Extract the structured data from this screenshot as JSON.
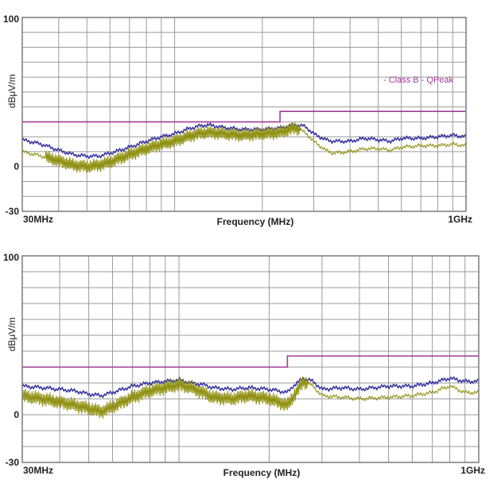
{
  "colors": {
    "grid": "#9a9a9a",
    "frame": "#7a7a7a",
    "limit": "#a03c98",
    "peak": "#2d2a9a",
    "avg": "#8f8f0f",
    "text": "#222222"
  },
  "chart_data": [
    {
      "type": "line",
      "title": "",
      "xlabel": "Frequency (MHz)",
      "ylabel": "dBμV/m",
      "x_scale": "log",
      "xlim_mhz": [
        30,
        1000
      ],
      "ylim": [
        -30,
        100
      ],
      "x_tick_labels": [
        "30MHz",
        "1GHz"
      ],
      "y_tick_labels": [
        "100",
        "0",
        "-30"
      ],
      "grid": true,
      "legend": "Class B - QPeak",
      "limit_line": {
        "name": "Class B - QPeak",
        "x_mhz": [
          30,
          230,
          230,
          1000
        ],
        "y": [
          30,
          30,
          37,
          37
        ]
      },
      "series": [
        {
          "name": "",
          "style": "blue",
          "x_mhz": [
            30,
            35,
            40,
            45,
            50,
            55,
            60,
            70,
            80,
            90,
            100,
            110,
            120,
            130,
            150,
            170,
            200,
            230,
            260,
            280,
            300,
            330,
            350,
            400,
            450,
            500,
            550,
            600,
            700,
            800,
            900,
            1000
          ],
          "y": [
            18,
            15,
            11,
            8,
            7,
            7,
            9,
            13,
            17,
            20,
            22,
            25,
            27,
            28,
            26,
            25,
            25,
            26,
            28,
            27,
            22,
            18,
            17,
            17,
            19,
            18,
            17,
            19,
            19,
            20,
            21,
            20
          ]
        },
        {
          "name": "",
          "style": "olive",
          "x_mhz": [
            30,
            35,
            40,
            45,
            50,
            55,
            60,
            70,
            80,
            90,
            100,
            110,
            120,
            130,
            150,
            170,
            200,
            230,
            260,
            280,
            300,
            330,
            350,
            400,
            450,
            500,
            550,
            600,
            700,
            800,
            900,
            1000
          ],
          "y": [
            10,
            7,
            4,
            1,
            0,
            1,
            3,
            8,
            12,
            15,
            17,
            20,
            22,
            23,
            22,
            21,
            22,
            23,
            26,
            23,
            17,
            11,
            9,
            10,
            12,
            12,
            11,
            13,
            14,
            14,
            15,
            14
          ],
          "ripple_range_mhz": [
            36,
            270
          ]
        }
      ]
    },
    {
      "type": "line",
      "title": "",
      "xlabel": "Frequency (MHz)",
      "ylabel": "dBμV/m",
      "x_scale": "log",
      "xlim_mhz": [
        30,
        1000
      ],
      "ylim": [
        -30,
        100
      ],
      "x_tick_labels": [
        "30MHz",
        "1GHz"
      ],
      "y_tick_labels": [
        "100",
        "0",
        "-30"
      ],
      "grid": true,
      "legend": "",
      "limit_line": {
        "name": "",
        "x_mhz": [
          30,
          230,
          230,
          1000
        ],
        "y": [
          30,
          30,
          37,
          37
        ]
      },
      "series": [
        {
          "name": "",
          "style": "blue",
          "x_mhz": [
            30,
            35,
            40,
            45,
            50,
            55,
            60,
            70,
            80,
            90,
            100,
            110,
            120,
            130,
            150,
            170,
            200,
            230,
            240,
            260,
            280,
            300,
            350,
            400,
            500,
            600,
            700,
            800,
            900,
            1000
          ],
          "y": [
            18,
            17,
            16,
            15,
            13,
            12,
            14,
            18,
            20,
            21,
            22,
            20,
            19,
            17,
            16,
            17,
            16,
            14,
            18,
            23,
            21,
            16,
            17,
            16,
            18,
            18,
            20,
            23,
            21,
            21
          ]
        },
        {
          "name": "",
          "style": "olive",
          "x_mhz": [
            30,
            35,
            40,
            45,
            50,
            55,
            60,
            70,
            80,
            90,
            100,
            110,
            120,
            130,
            150,
            170,
            200,
            230,
            240,
            260,
            280,
            300,
            350,
            400,
            500,
            600,
            700,
            800,
            900,
            1000
          ],
          "y": [
            12,
            10,
            8,
            6,
            4,
            2,
            5,
            11,
            15,
            17,
            19,
            17,
            14,
            11,
            10,
            12,
            10,
            6,
            11,
            21,
            18,
            12,
            11,
            10,
            11,
            12,
            14,
            18,
            14,
            14
          ],
          "ripple_range_mhz": [
            30,
            270
          ]
        }
      ]
    }
  ]
}
